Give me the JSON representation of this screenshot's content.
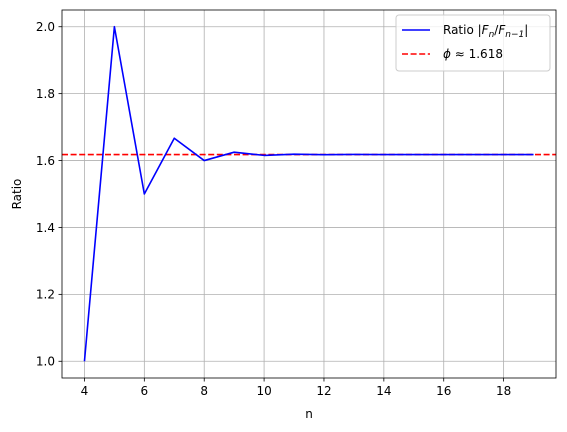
{
  "chart_data": {
    "type": "line",
    "xlabel": "n",
    "ylabel": "Ratio",
    "xlim": [
      3.25,
      19.75
    ],
    "ylim": [
      0.95,
      2.05
    ],
    "x_ticks": [
      4,
      6,
      8,
      10,
      12,
      14,
      16,
      18
    ],
    "y_ticks": [
      1.0,
      1.2,
      1.4,
      1.6,
      1.8,
      2.0
    ],
    "x_tick_labels": [
      "4",
      "6",
      "8",
      "10",
      "12",
      "14",
      "16",
      "18"
    ],
    "y_tick_labels": [
      "1.0",
      "1.2",
      "1.4",
      "1.6",
      "1.8",
      "2.0"
    ],
    "grid": true,
    "legend_position": "upper right",
    "series": [
      {
        "name": "Ratio |F_n/F_{n-1}|",
        "color": "#0000ff",
        "style": "solid",
        "x": [
          4,
          5,
          6,
          7,
          8,
          9,
          10,
          11,
          12,
          13,
          14,
          15,
          16,
          17,
          18,
          19
        ],
        "y": [
          1.0,
          2.0,
          1.5,
          1.6667,
          1.6,
          1.625,
          1.6154,
          1.619,
          1.6176,
          1.6182,
          1.618,
          1.618,
          1.618,
          1.618,
          1.618,
          1.618
        ]
      }
    ],
    "reference_lines": [
      {
        "name": "ϕ ≈ 1.618",
        "orientation": "horizontal",
        "y": 1.618,
        "color": "#ff0000",
        "style": "dashed"
      }
    ]
  }
}
